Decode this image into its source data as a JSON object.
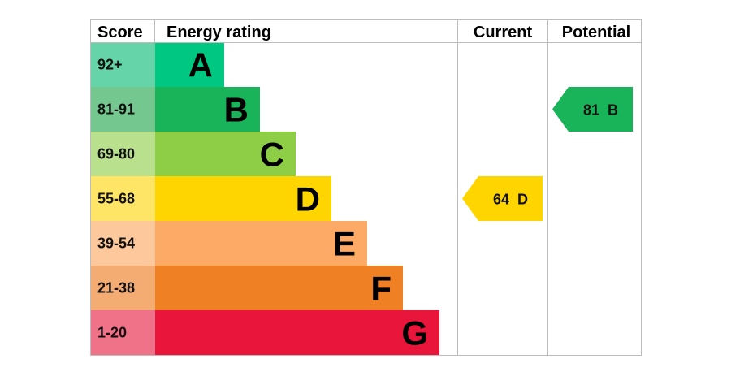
{
  "chart_data": {
    "type": "bar",
    "headers": {
      "score": "Score",
      "energy_rating": "Energy rating",
      "current": "Current",
      "potential": "Potential"
    },
    "bands": [
      {
        "letter": "A",
        "range": "92+",
        "color": "#00c781",
        "score_bg": "#66d4a9"
      },
      {
        "letter": "B",
        "range": "81-91",
        "color": "#19b459",
        "score_bg": "#73c78f"
      },
      {
        "letter": "C",
        "range": "69-80",
        "color": "#8dce46",
        "score_bg": "#b8e08d"
      },
      {
        "letter": "D",
        "range": "55-68",
        "color": "#ffd500",
        "score_bg": "#ffe566"
      },
      {
        "letter": "E",
        "range": "39-54",
        "color": "#fcaa65",
        "score_bg": "#fdc99c"
      },
      {
        "letter": "F",
        "range": "21-38",
        "color": "#ef8023",
        "score_bg": "#f4ac72"
      },
      {
        "letter": "G",
        "range": "1-20",
        "color": "#e9153b",
        "score_bg": "#f07288"
      }
    ],
    "current": {
      "value": 64,
      "letter": "D",
      "label": "64  D",
      "color": "#ffd500"
    },
    "potential": {
      "value": 81,
      "letter": "B",
      "label": "81  B",
      "color": "#19b459"
    }
  }
}
